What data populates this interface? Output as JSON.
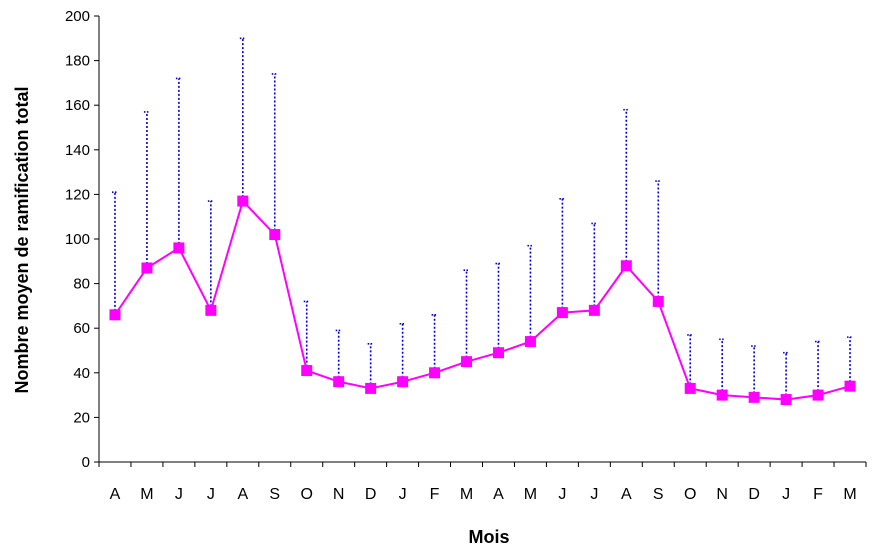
{
  "chart_data": {
    "type": "line",
    "title": "",
    "xlabel": "Mois",
    "ylabel": "Nombre moyen de ramification total",
    "ylim": [
      0,
      200
    ],
    "yticks": [
      0,
      20,
      40,
      60,
      80,
      100,
      120,
      140,
      160,
      180,
      200
    ],
    "grid": false,
    "legend": "none",
    "categories": [
      "A",
      "M",
      "J",
      "J",
      "A",
      "S",
      "O",
      "N",
      "D",
      "J",
      "F",
      "M",
      "A",
      "M",
      "J",
      "J",
      "A",
      "S",
      "O",
      "N",
      "D",
      "J",
      "F",
      "M"
    ],
    "series": [
      {
        "values": [
          66,
          87,
          96,
          68,
          117,
          102,
          41,
          36,
          33,
          36,
          40,
          45,
          49,
          54,
          67,
          68,
          88,
          72,
          33,
          30,
          29,
          28,
          30,
          34
        ],
        "upper": [
          121,
          157,
          172,
          117,
          190,
          174,
          72,
          59,
          53,
          62,
          66,
          86,
          89,
          97,
          118,
          107,
          158,
          126,
          57,
          55,
          52,
          49,
          54,
          56
        ],
        "color": "#ff00ff",
        "error_color": "#0000cc"
      }
    ]
  }
}
